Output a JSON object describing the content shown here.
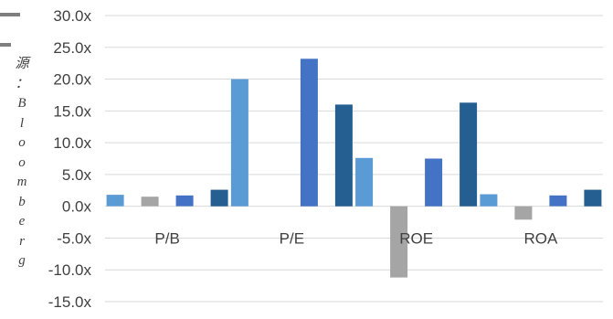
{
  "side_note": "源：Bloomberg",
  "chart_data": {
    "type": "bar",
    "categories": [
      "P/B",
      "P/E",
      "ROE",
      "ROA"
    ],
    "series": [
      {
        "values": [
          1.8,
          20.0,
          7.6,
          1.9
        ]
      },
      {
        "values": [
          1.5,
          null,
          -11.2,
          -2.1
        ]
      },
      {
        "values": [
          1.7,
          23.2,
          7.5,
          1.7
        ]
      },
      {
        "values": [
          2.6,
          16.0,
          16.3,
          2.6
        ]
      }
    ],
    "yticks": [
      "30.0x",
      "25.0x",
      "20.0x",
      "15.0x",
      "10.0x",
      "5.0x",
      "0.0x",
      "-5.0x",
      "-10.0x",
      "-15.0x"
    ],
    "ylim": [
      -15,
      30
    ],
    "grid": true,
    "colors": [
      "#5b9bd5",
      "#a5a5a5",
      "#4472c4",
      "#255e91"
    ]
  }
}
